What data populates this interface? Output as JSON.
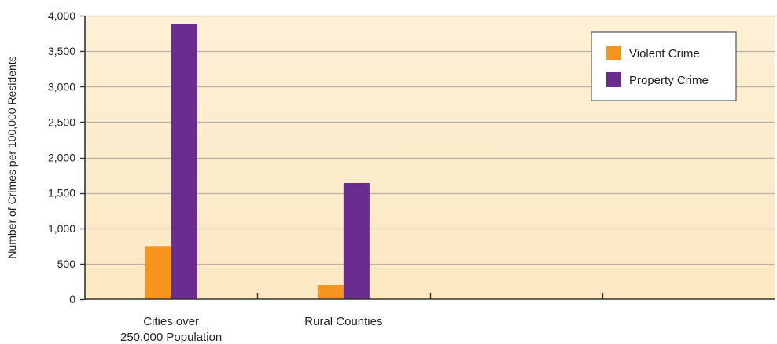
{
  "chart_data": {
    "type": "bar",
    "categories": [
      "Cities over 250,000 Population",
      "Rural  Counties",
      "",
      ""
    ],
    "category_label_lines": [
      [
        "Cities over",
        "250,000 Population"
      ],
      [
        "Rural  Counties"
      ],
      [],
      []
    ],
    "series": [
      {
        "name": "Violent Crime",
        "values": [
          750,
          200,
          null,
          null
        ],
        "color": "#f7941d"
      },
      {
        "name": "Property Crime",
        "values": [
          3880,
          1640,
          null,
          null
        ],
        "color": "#6a2c8e"
      }
    ],
    "ylabel": "Number of Crimes per 100,000 Residents",
    "xlabel": "",
    "ylim": [
      0,
      4000
    ],
    "yticks": [
      0,
      500,
      1000,
      1500,
      2000,
      2500,
      3000,
      3500,
      4000
    ],
    "ytick_labels": [
      "0",
      "500",
      "1,000",
      "1,500",
      "2,000",
      "2,500",
      "3,000",
      "3,500",
      "4,000"
    ],
    "grid": true,
    "legend_position": "top-right",
    "plot_background": "#fdeccb",
    "grid_color": "#b9b1a3"
  }
}
